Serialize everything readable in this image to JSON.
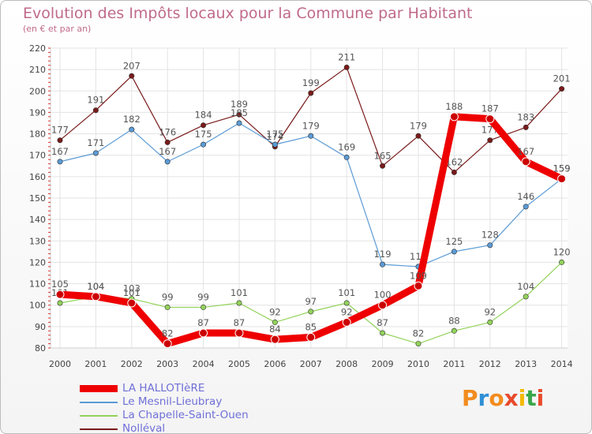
{
  "chart_data": {
    "type": "line",
    "title": "Evolution des Impôts locaux pour la Commune par Habitant",
    "subtitle": "(en € et par an)",
    "xlabel": "",
    "ylabel": "",
    "ylim": [
      80,
      220
    ],
    "yticks": [
      80,
      90,
      100,
      110,
      120,
      130,
      140,
      150,
      160,
      170,
      180,
      190,
      200,
      210,
      220
    ],
    "categories": [
      "2000",
      "2001",
      "2002",
      "2003",
      "2004",
      "2005",
      "2006",
      "2007",
      "2008",
      "2009",
      "2010",
      "2011",
      "2012",
      "2013",
      "2014"
    ],
    "grid": true,
    "legend_position": "bottom-left",
    "series": [
      {
        "name": "LA HALLOTIèRE",
        "color": "#ee0000",
        "values": [
          105,
          104,
          101,
          82,
          87,
          87,
          84,
          85,
          92,
          100,
          109,
          188,
          187,
          167,
          159
        ]
      },
      {
        "name": "Le Mesnil-Lieubray",
        "color": "#5b9bd5",
        "values": [
          167,
          171,
          182,
          167,
          175,
          185,
          175,
          179,
          169,
          119,
          118,
          125,
          128,
          146,
          159
        ]
      },
      {
        "name": "La Chapelle-Saint-Ouen",
        "color": "#93d35a",
        "values": [
          101,
          104,
          103,
          99,
          99,
          101,
          92,
          97,
          101,
          87,
          82,
          88,
          92,
          104,
          120
        ]
      },
      {
        "name": "Nolléval",
        "color": "#7a1a1a",
        "values": [
          177,
          191,
          207,
          176,
          184,
          189,
          174,
          199,
          211,
          165,
          179,
          162,
          177,
          183,
          201
        ]
      }
    ]
  },
  "logo": {
    "text": "Proxiti"
  }
}
